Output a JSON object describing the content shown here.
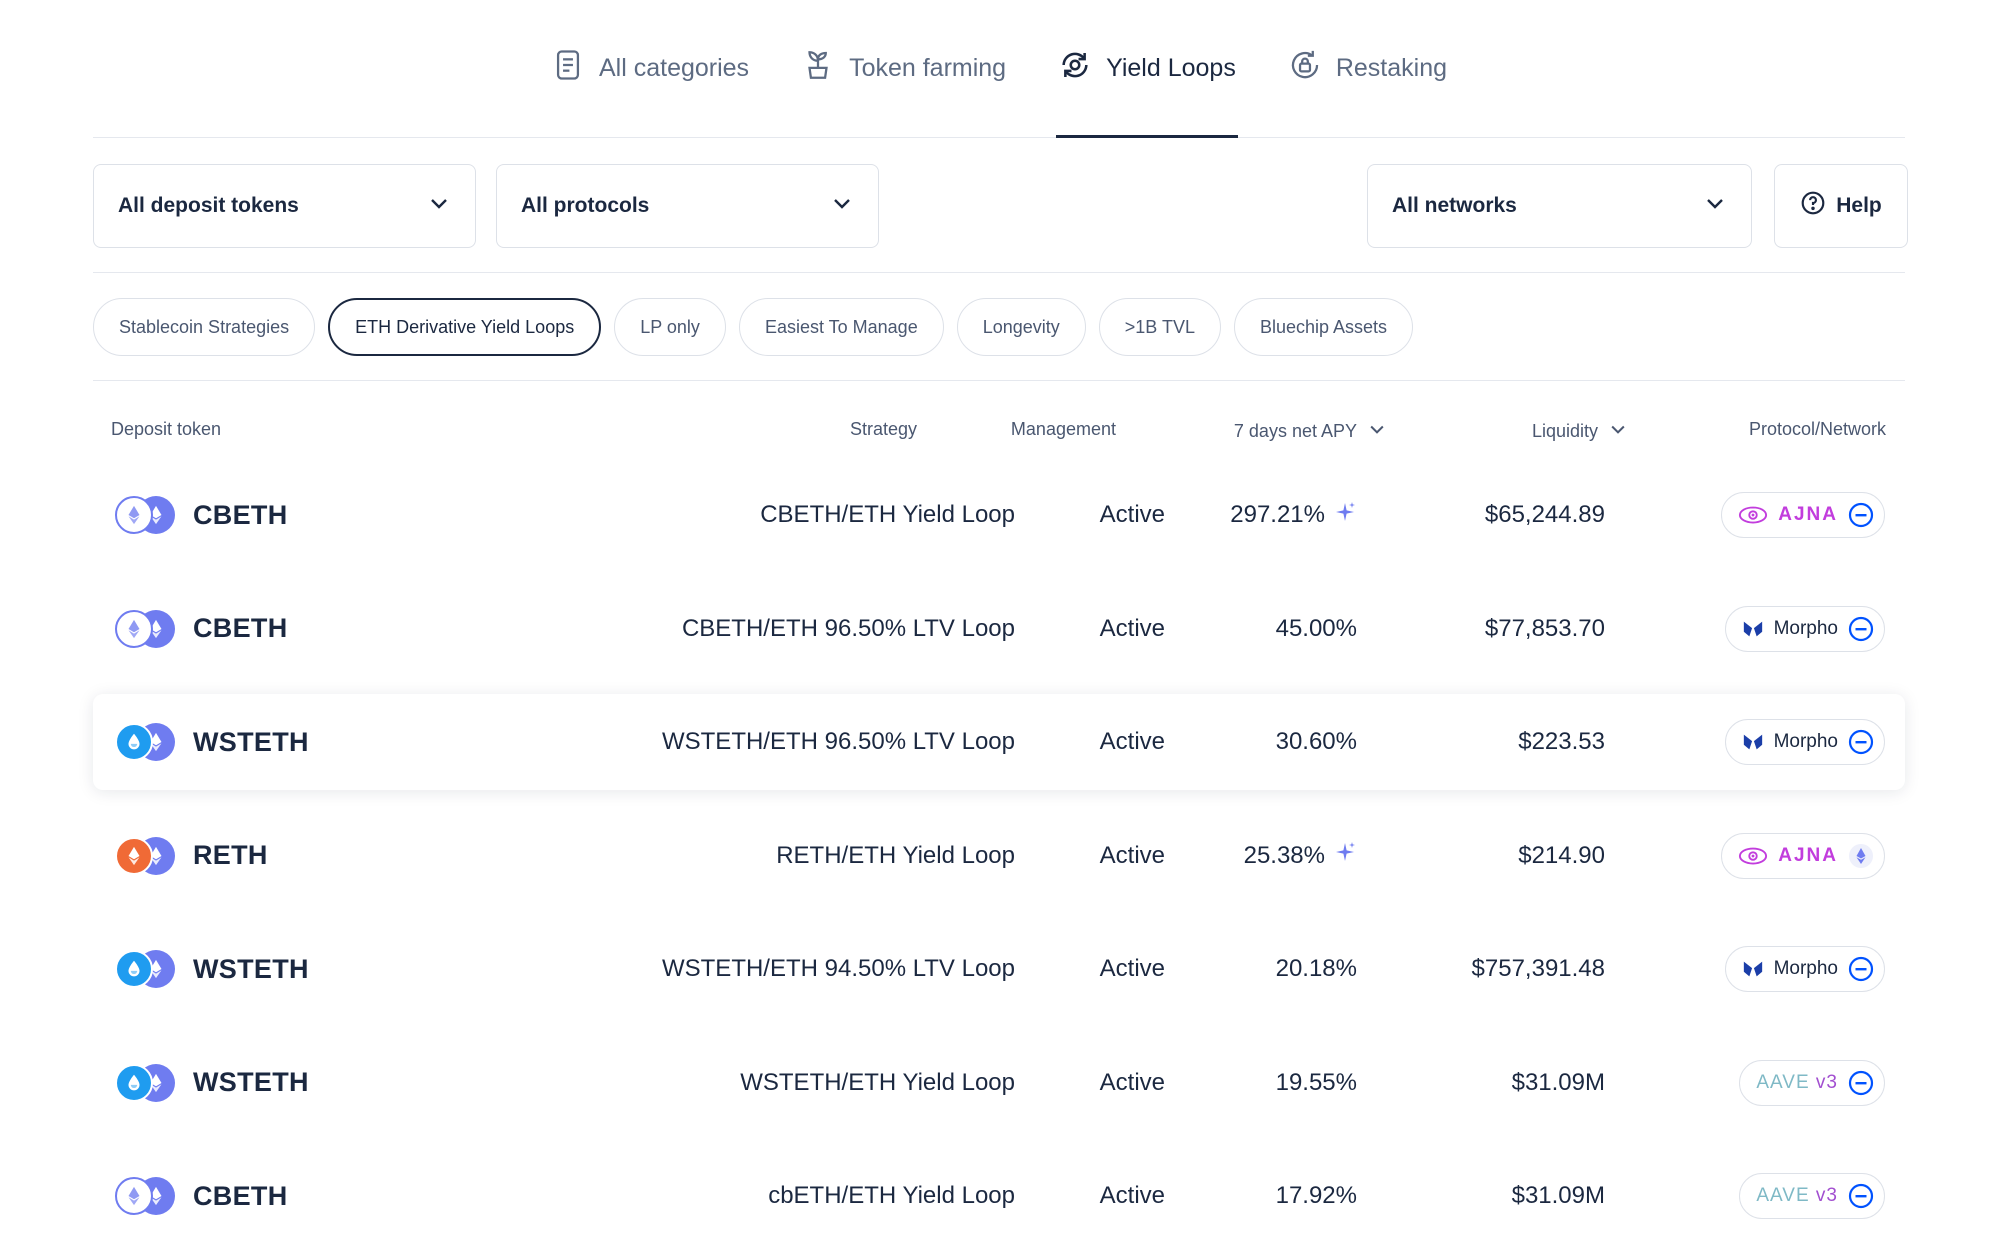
{
  "tabs": [
    {
      "label": "All categories",
      "icon": "document-icon",
      "active": false
    },
    {
      "label": "Token farming",
      "icon": "plant-icon",
      "active": false
    },
    {
      "label": "Yield Loops",
      "icon": "loop-icon",
      "active": true
    },
    {
      "label": "Restaking",
      "icon": "lock-refresh-icon",
      "active": false
    }
  ],
  "filters": {
    "deposit_tokens": "All deposit tokens",
    "protocols": "All protocols",
    "networks": "All networks",
    "help": "Help"
  },
  "chips": [
    {
      "label": "Stablecoin Strategies",
      "active": false
    },
    {
      "label": "ETH Derivative Yield Loops",
      "active": true
    },
    {
      "label": "LP only",
      "active": false
    },
    {
      "label": "Easiest To Manage",
      "active": false
    },
    {
      "label": "Longevity",
      "active": false
    },
    {
      "label": ">1B TVL",
      "active": false
    },
    {
      "label": "Bluechip Assets",
      "active": false
    }
  ],
  "table": {
    "headers": {
      "deposit_token": "Deposit token",
      "strategy": "Strategy",
      "management": "Management",
      "apy": "7 days net APY",
      "liquidity": "Liquidity",
      "protocol": "Protocol/Network"
    },
    "rows": [
      {
        "token": "CBETH",
        "token_kind": "cbeth",
        "strategy": "CBETH/ETH Yield Loop",
        "management": "Active",
        "apy": "297.21%",
        "sparkle": true,
        "liquidity": "$65,244.89",
        "protocol": "AJNA",
        "protocol_kind": "ajna",
        "network": "base"
      },
      {
        "token": "CBETH",
        "token_kind": "cbeth",
        "strategy": "CBETH/ETH 96.50% LTV Loop",
        "management": "Active",
        "apy": "45.00%",
        "sparkle": false,
        "liquidity": "$77,853.70",
        "protocol": "Morpho",
        "protocol_kind": "morpho",
        "network": "base"
      },
      {
        "token": "WSTETH",
        "token_kind": "wsteth",
        "strategy": "WSTETH/ETH 96.50% LTV Loop",
        "management": "Active",
        "apy": "30.60%",
        "sparkle": false,
        "liquidity": "$223.53",
        "protocol": "Morpho",
        "protocol_kind": "morpho",
        "network": "base",
        "highlighted": true
      },
      {
        "token": "RETH",
        "token_kind": "reth",
        "strategy": "RETH/ETH Yield Loop",
        "management": "Active",
        "apy": "25.38%",
        "sparkle": true,
        "liquidity": "$214.90",
        "protocol": "AJNA",
        "protocol_kind": "ajna",
        "network": "ethereum"
      },
      {
        "token": "WSTETH",
        "token_kind": "wsteth",
        "strategy": "WSTETH/ETH 94.50% LTV Loop",
        "management": "Active",
        "apy": "20.18%",
        "sparkle": false,
        "liquidity": "$757,391.48",
        "protocol": "Morpho",
        "protocol_kind": "morpho",
        "network": "base"
      },
      {
        "token": "WSTETH",
        "token_kind": "wsteth",
        "strategy": "WSTETH/ETH Yield Loop",
        "management": "Active",
        "apy": "19.55%",
        "sparkle": false,
        "liquidity": "$31.09M",
        "protocol": "AAVE",
        "protocol_version": "v3",
        "protocol_kind": "aave",
        "network": "base"
      },
      {
        "token": "CBETH",
        "token_kind": "cbeth",
        "strategy": "cbETH/ETH Yield Loop",
        "management": "Active",
        "apy": "17.92%",
        "sparkle": false,
        "liquidity": "$31.09M",
        "protocol": "AAVE",
        "protocol_version": "v3",
        "protocol_kind": "aave",
        "network": "base"
      }
    ]
  },
  "colors": {
    "text": "#1b2840",
    "muted": "#4a5770",
    "border": "#dde1e8",
    "cbeth": "#ffffff",
    "cbeth_outline": "#6f7cf0",
    "wsteth": "#1f9cf0",
    "reth": "#f06a36",
    "eth_back": "#6f7cf0",
    "ajna": "#c23ddd",
    "morpho": "#1b3ea8",
    "base": "#0052ff",
    "sparkle": "#6f7cf0"
  }
}
